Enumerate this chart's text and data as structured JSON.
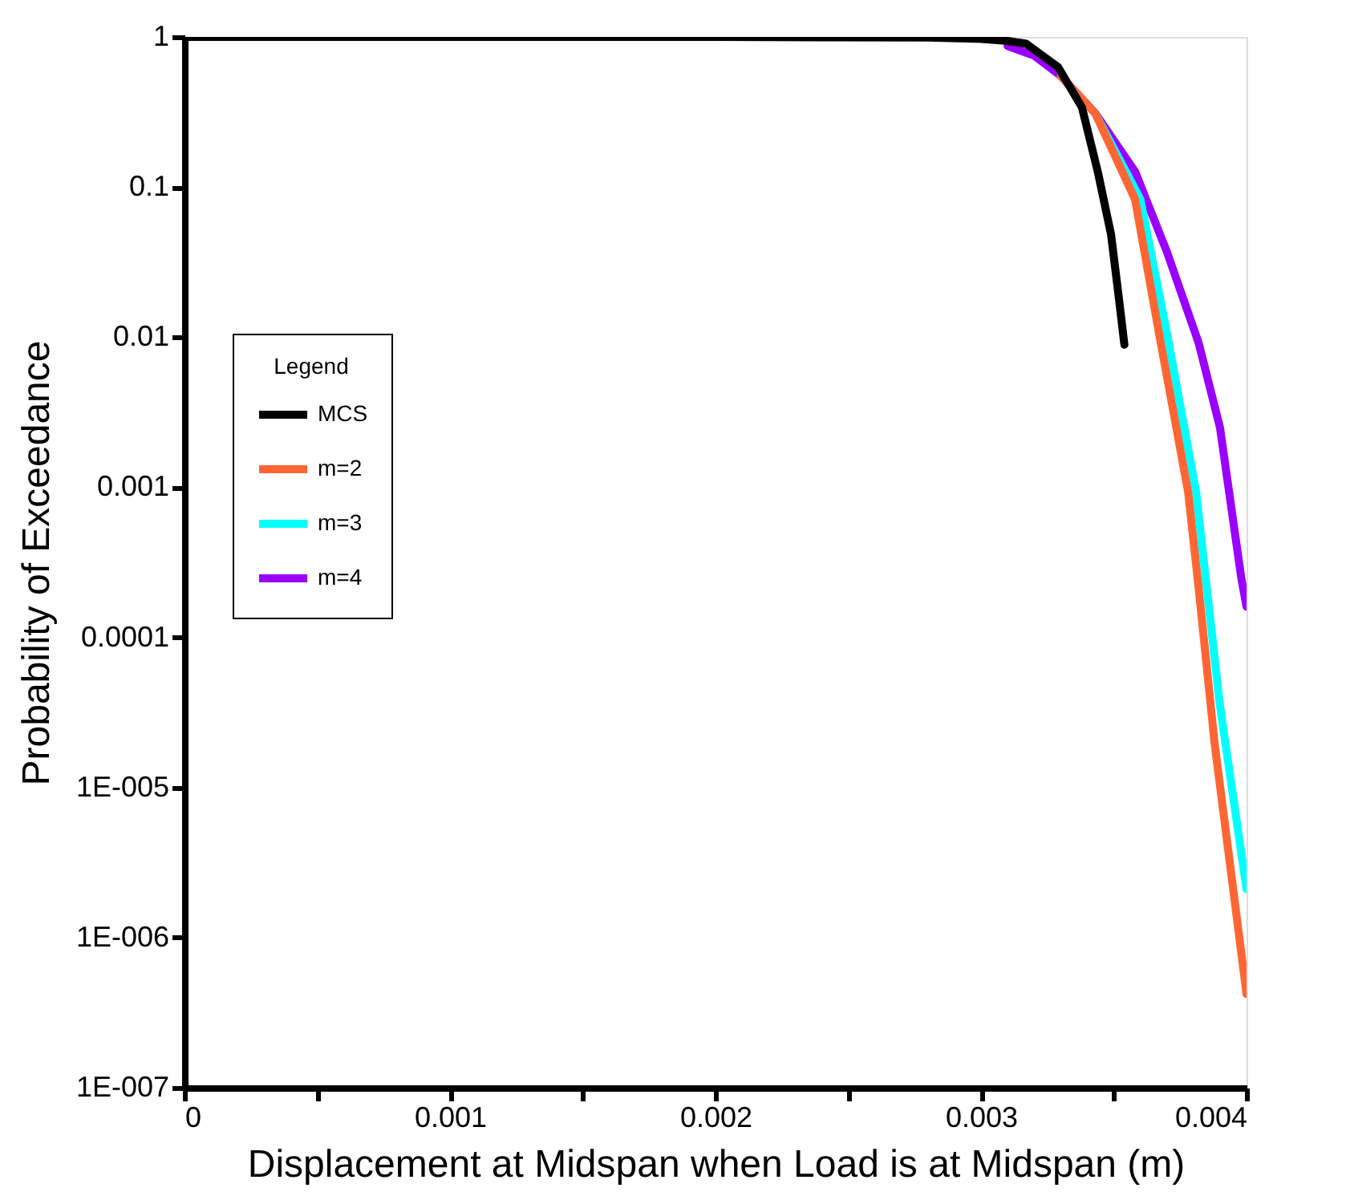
{
  "chart_data": {
    "type": "line",
    "xlabel": "Displacement at Midspan when Load is at Midspan (m)",
    "ylabel": "Probability of Exceedance",
    "legend_title": "Legend",
    "legend": "left",
    "log": "y",
    "grid": false,
    "marker": "none",
    "line_style": "solid",
    "xlim": [
      0,
      0.004
    ],
    "ylim": [
      1e-07,
      1
    ],
    "xticks": [
      0,
      {
        "value": 0.0005,
        "label": null
      },
      0.001,
      {
        "value": 0.0015,
        "label": null
      },
      0.002,
      {
        "value": 0.0025,
        "label": null
      },
      0.003,
      {
        "value": 0.0035,
        "label": null
      },
      0.004
    ],
    "yticks": [
      {
        "value": 1e-07,
        "label": "1E-007"
      },
      {
        "value": 1e-06,
        "label": "1E-006"
      },
      {
        "value": 1e-05,
        "label": "1E-005"
      },
      0.0001,
      0.001,
      0.01,
      0.1,
      1
    ],
    "series": [
      {
        "name": "MCS",
        "color": "#000000",
        "x": [
          0,
          0.001,
          0.002,
          0.0028,
          0.003,
          0.0031,
          0.00317,
          0.00329,
          0.00338,
          0.00344,
          0.00349,
          0.00352,
          0.00354
        ],
        "values": [
          1,
          1,
          0.999,
          0.99,
          0.97,
          0.94,
          0.9,
          0.63,
          0.34,
          0.126,
          0.048,
          0.0177,
          0.0089
        ]
      },
      {
        "name": "m=2",
        "color": "#ff6633",
        "x": [
          0.0033,
          0.00343,
          0.00358,
          0.00367,
          0.00378,
          0.00382,
          0.00388,
          0.004
        ],
        "values": [
          0.55,
          0.31,
          0.083,
          0.0107,
          0.00093,
          0.00021,
          1.95e-05,
          4.2e-07
        ]
      },
      {
        "name": "m=3",
        "color": "#00ffff",
        "x": [
          0.00343,
          0.0036,
          0.0037,
          0.00381,
          0.0039,
          0.004
        ],
        "values": [
          0.31,
          0.083,
          0.0107,
          0.00093,
          3.5e-05,
          2.1e-06
        ]
      },
      {
        "name": "m=4",
        "color": "#9900ff",
        "x": [
          0.0031,
          0.0032,
          0.0033,
          0.00343,
          0.00358,
          0.0037,
          0.00382,
          0.0039,
          0.00398,
          0.004
        ],
        "values": [
          0.87,
          0.75,
          0.55,
          0.31,
          0.127,
          0.037,
          0.0091,
          0.0025,
          0.00025,
          0.00016
        ]
      }
    ]
  }
}
